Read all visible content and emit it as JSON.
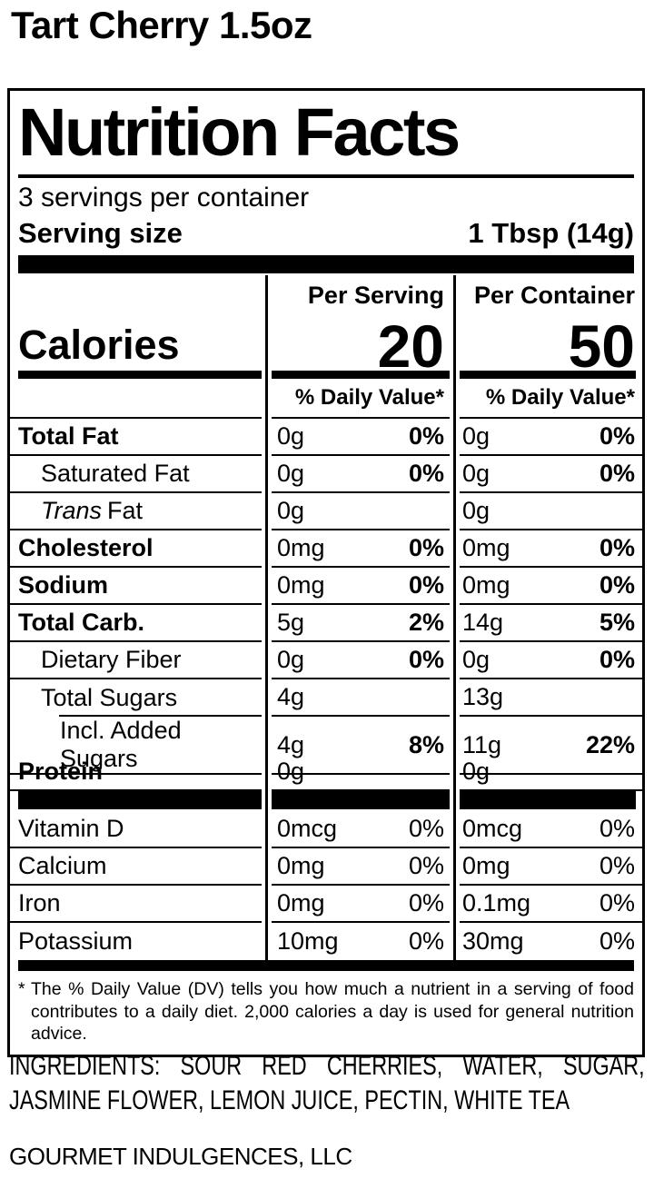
{
  "page": {
    "product_title": "Tart Cherry 1.5oz",
    "ingredients": "INGREDIENTS: SOUR RED CHERRIES, WATER, SUGAR, JASMINE FLOWER, LEMON JUICE, PECTIN, WHITE TEA",
    "company": "GOURMET INDULGENCES, LLC"
  },
  "label": {
    "title": "Nutrition Facts",
    "servings_per_container": "3 servings per container",
    "serving_size_label": "Serving size",
    "serving_size_value": "1 Tbsp (14g)",
    "columns": {
      "serving": "Per Serving",
      "container": "Per Container"
    },
    "calories": {
      "label": "Calories",
      "per_serving": "20",
      "per_container": "50"
    },
    "daily_value_header": "% Daily Value*",
    "rows": [
      {
        "name": "Total Fat",
        "bold": true,
        "indent": 0,
        "serving_amount": "0g",
        "serving_dv": "0%",
        "container_amount": "0g",
        "container_dv": "0%",
        "dv_bold": true
      },
      {
        "name": "Saturated Fat",
        "bold": false,
        "indent": 1,
        "serving_amount": "0g",
        "serving_dv": "0%",
        "container_amount": "0g",
        "container_dv": "0%",
        "dv_bold": true
      },
      {
        "name": "Fat",
        "name_italic": "Trans",
        "bold": false,
        "indent": 1,
        "serving_amount": "0g",
        "serving_dv": "",
        "container_amount": "0g",
        "container_dv": "",
        "dv_bold": true
      },
      {
        "name": "Cholesterol",
        "bold": true,
        "indent": 0,
        "serving_amount": "0mg",
        "serving_dv": "0%",
        "container_amount": "0mg",
        "container_dv": "0%",
        "dv_bold": true
      },
      {
        "name": "Sodium",
        "bold": true,
        "indent": 0,
        "serving_amount": "0mg",
        "serving_dv": "0%",
        "container_amount": "0mg",
        "container_dv": "0%",
        "dv_bold": true
      },
      {
        "name": "Total Carb.",
        "bold": true,
        "indent": 0,
        "serving_amount": "5g",
        "serving_dv": "2%",
        "container_amount": "14g",
        "container_dv": "5%",
        "dv_bold": true
      },
      {
        "name": "Dietary Fiber",
        "bold": false,
        "indent": 1,
        "serving_amount": "0g",
        "serving_dv": "0%",
        "container_amount": "0g",
        "container_dv": "0%",
        "dv_bold": true
      },
      {
        "name": "Total Sugars",
        "bold": false,
        "indent": 1,
        "serving_amount": "4g",
        "serving_dv": "",
        "container_amount": "13g",
        "container_dv": "",
        "dv_bold": true,
        "rule_indent": true
      },
      {
        "name": "Incl. Added Sugars",
        "bold": false,
        "indent": 2,
        "serving_amount": "4g",
        "serving_dv": "8%",
        "container_amount": "11g",
        "container_dv": "22%",
        "dv_bold": true
      },
      {
        "name": "Protein",
        "bold": true,
        "indent": 0,
        "serving_amount": "0g",
        "serving_dv": "",
        "container_amount": "0g",
        "container_dv": "",
        "dv_bold": true
      },
      {
        "type": "divider"
      },
      {
        "name": "Vitamin D",
        "bold": false,
        "indent": 0,
        "serving_amount": "0mcg",
        "serving_dv": "0%",
        "container_amount": "0mcg",
        "container_dv": "0%",
        "dv_bold": false
      },
      {
        "name": "Calcium",
        "bold": false,
        "indent": 0,
        "serving_amount": "0mg",
        "serving_dv": "0%",
        "container_amount": "0mg",
        "container_dv": "0%",
        "dv_bold": false
      },
      {
        "name": "Iron",
        "bold": false,
        "indent": 0,
        "serving_amount": "0mg",
        "serving_dv": "0%",
        "container_amount": "0.1mg",
        "container_dv": "0%",
        "dv_bold": false
      },
      {
        "name": "Potassium",
        "bold": false,
        "indent": 0,
        "serving_amount": "10mg",
        "serving_dv": "0%",
        "container_amount": "30mg",
        "container_dv": "0%",
        "dv_bold": false,
        "last": true
      }
    ],
    "footnote_star": "*",
    "footnote": "The % Daily Value (DV) tells you how much a nutrient in a serving of food contributes to a daily diet. 2,000 calories a day is used for general nutrition advice."
  }
}
